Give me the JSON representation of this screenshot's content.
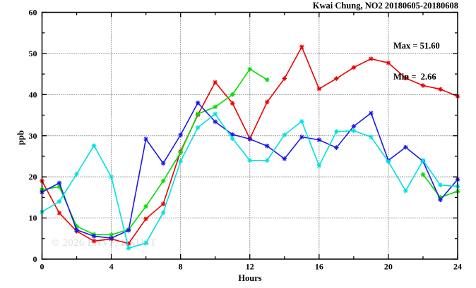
{
  "title": "Kwai Chung, NO2 20180605-20180608",
  "stats": {
    "max_label": "Max = 51.60",
    "min_label": "Min =  2.66"
  },
  "watermark": "© 2026 ENVF, HKUST",
  "chart_data": {
    "type": "line",
    "title": "Kwai Chung, NO2 20180605-20180608",
    "xlabel": "Hours",
    "ylabel": "ppb",
    "xlim": [
      0,
      24
    ],
    "ylim": [
      0,
      60
    ],
    "xticks": [
      0,
      4,
      8,
      12,
      16,
      20,
      24
    ],
    "yticks": [
      0,
      10,
      20,
      30,
      40,
      50,
      60
    ],
    "minor_xticks": [
      2,
      6,
      10,
      14,
      18,
      22
    ],
    "minor_yticks": [
      5,
      15,
      25,
      35,
      45,
      55
    ],
    "grid": true,
    "legend_position": "none",
    "max_value": 51.6,
    "min_value": 2.66,
    "marker": "asterisk",
    "x": [
      0,
      1,
      2,
      3,
      4,
      5,
      6,
      7,
      8,
      9,
      10,
      11,
      12,
      13,
      14,
      15,
      16,
      17,
      18,
      19,
      20,
      21,
      22,
      23,
      24
    ],
    "series": [
      {
        "name": "series-red",
        "color": "#ee0000",
        "values": [
          19.0,
          11.2,
          6.8,
          4.4,
          4.9,
          3.8,
          9.8,
          13.4,
          26.2,
          35.1,
          43.0,
          37.9,
          29.3,
          38.2,
          43.9,
          51.6,
          41.4,
          43.9,
          46.6,
          48.7,
          47.7,
          44.0,
          42.2,
          41.3,
          39.6
        ]
      },
      {
        "name": "series-green",
        "color": "#00dd00",
        "values": [
          16.9,
          17.6,
          8.0,
          6.0,
          5.9,
          7.2,
          12.8,
          19.0,
          25.9,
          35.3,
          37.0,
          40.0,
          46.2,
          43.6,
          null,
          null,
          null,
          null,
          null,
          null,
          null,
          null,
          20.6,
          15.0,
          16.5
        ]
      },
      {
        "name": "series-blue",
        "color": "#1a1ae6",
        "values": [
          16.3,
          18.5,
          7.1,
          5.6,
          5.1,
          7.0,
          29.2,
          23.3,
          30.2,
          38.0,
          33.4,
          30.3,
          29.2,
          27.5,
          24.4,
          29.7,
          29.0,
          27.1,
          32.3,
          35.5,
          24.0,
          27.2,
          23.8,
          14.4,
          19.4
        ]
      },
      {
        "name": "series-cyan",
        "color": "#00e0e0",
        "values": [
          11.5,
          14.0,
          20.7,
          27.6,
          20.0,
          2.66,
          3.9,
          11.3,
          23.8,
          32.0,
          35.3,
          29.3,
          24.0,
          24.0,
          30.2,
          33.5,
          22.7,
          31.0,
          31.2,
          29.7,
          23.7,
          16.6,
          24.0,
          18.0,
          17.7
        ]
      }
    ]
  }
}
